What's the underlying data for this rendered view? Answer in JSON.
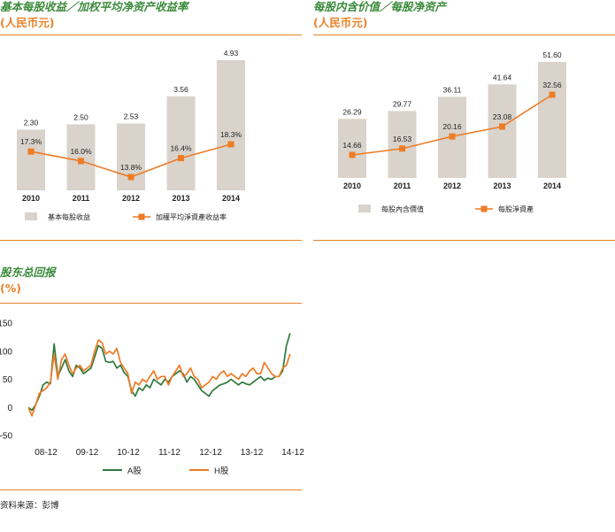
{
  "panels": {
    "p1": {
      "title": "基本每股收益／加权平均净资产收益率",
      "unit": "(人民币元)"
    },
    "p2": {
      "title": "每股内含价值／每股净资产",
      "unit": "(人民币元)"
    },
    "p3": {
      "title": "股东总回报",
      "unit": "(%)"
    }
  },
  "source": "资料来源：彭博",
  "colors": {
    "bar": "#d9d3cb",
    "accent": "#ee7b25",
    "green": "#3a8a3a",
    "a_share": "#2e7a3a",
    "h_share": "#ee7b25",
    "rule": "#e8822a",
    "axis": "#555555"
  },
  "chart_data": [
    {
      "type": "bar",
      "categories": [
        "2010",
        "2011",
        "2012",
        "2013",
        "2014"
      ],
      "series": [
        {
          "name": "基本每股收益",
          "kind": "bar",
          "values": [
            2.3,
            2.5,
            2.53,
            3.56,
            4.93
          ],
          "labels": [
            "2.30",
            "2.50",
            "2.53",
            "3.56",
            "4.93"
          ]
        },
        {
          "name": "加權平均淨資產收益率",
          "kind": "line",
          "values": [
            17.3,
            16.0,
            13.8,
            16.4,
            18.3
          ],
          "labels": [
            "17.3%",
            "16.0%",
            "13.8%",
            "16.4%",
            "18.3%"
          ]
        }
      ],
      "legend": [
        "基本每股收益",
        "加權平均淨資產收益率"
      ]
    },
    {
      "type": "bar",
      "categories": [
        "2010",
        "2011",
        "2012",
        "2013",
        "2014"
      ],
      "series": [
        {
          "name": "每股內含價值",
          "kind": "bar",
          "values": [
            26.29,
            29.77,
            36.11,
            41.64,
            51.6
          ],
          "labels": [
            "26.29",
            "29.77",
            "36.11",
            "41.64",
            "51.60"
          ]
        },
        {
          "name": "每股淨資產",
          "kind": "line",
          "values": [
            14.66,
            16.53,
            20.16,
            23.08,
            32.56
          ],
          "labels": [
            "14.66",
            "16.53",
            "20.16",
            "23.08",
            "32.56"
          ]
        }
      ],
      "legend": [
        "每股內含價值",
        "每股淨資產"
      ]
    },
    {
      "type": "line",
      "x_ticks": [
        "08-12",
        "09-12",
        "10-12",
        "11-12",
        "12-12",
        "13-12",
        "14-12"
      ],
      "y_ticks": [
        "150",
        "100",
        "50",
        "0",
        "-50"
      ],
      "ylim": [
        -50,
        150
      ],
      "xlim": [
        0,
        72
      ],
      "series": [
        {
          "name": "A股",
          "x": [
            0,
            1,
            2,
            3,
            4,
            5,
            6,
            7,
            8,
            9,
            10,
            11,
            12,
            13,
            14,
            15,
            16,
            17,
            18,
            19,
            20,
            21,
            22,
            23,
            24,
            25,
            26,
            27,
            28,
            29,
            30,
            31,
            32,
            33,
            34,
            35,
            36,
            37,
            38,
            39,
            40,
            41,
            42,
            43,
            44,
            45,
            46,
            47,
            48,
            49,
            50,
            51,
            52,
            53,
            54,
            55,
            56,
            57,
            58,
            59,
            60,
            61,
            62,
            63,
            64,
            65,
            66,
            67,
            68,
            69,
            70,
            71
          ],
          "values": [
            0,
            -5,
            5,
            20,
            40,
            45,
            42,
            113,
            55,
            70,
            85,
            65,
            55,
            75,
            70,
            60,
            65,
            70,
            90,
            110,
            105,
            82,
            80,
            82,
            70,
            75,
            62,
            55,
            30,
            20,
            35,
            30,
            40,
            35,
            50,
            45,
            40,
            50,
            45,
            55,
            60,
            65,
            60,
            45,
            55,
            50,
            40,
            30,
            25,
            20,
            30,
            35,
            40,
            42,
            45,
            50,
            45,
            40,
            45,
            42,
            40,
            45,
            50,
            55,
            48,
            52,
            50,
            55,
            55,
            65,
            110,
            132
          ]
        },
        {
          "name": "H股",
          "x": [
            0,
            1,
            2,
            3,
            4,
            5,
            6,
            7,
            8,
            9,
            10,
            11,
            12,
            13,
            14,
            15,
            16,
            17,
            18,
            19,
            20,
            21,
            22,
            23,
            24,
            25,
            26,
            27,
            28,
            29,
            30,
            31,
            32,
            33,
            34,
            35,
            36,
            37,
            38,
            39,
            40,
            41,
            42,
            43,
            44,
            45,
            46,
            47,
            48,
            49,
            50,
            51,
            52,
            53,
            54,
            55,
            56,
            57,
            58,
            59,
            60,
            61,
            62,
            63,
            64,
            65,
            66,
            67,
            68,
            69,
            70,
            71
          ],
          "values": [
            0,
            -15,
            5,
            25,
            30,
            35,
            45,
            95,
            50,
            85,
            95,
            75,
            60,
            70,
            75,
            65,
            70,
            75,
            100,
            120,
            115,
            95,
            100,
            95,
            105,
            80,
            70,
            60,
            25,
            45,
            40,
            50,
            45,
            55,
            65,
            50,
            55,
            55,
            40,
            55,
            65,
            75,
            55,
            60,
            70,
            55,
            50,
            35,
            40,
            45,
            55,
            50,
            60,
            65,
            55,
            60,
            55,
            50,
            60,
            55,
            65,
            70,
            60,
            60,
            80,
            70,
            60,
            55,
            55,
            70,
            75,
            95
          ]
        }
      ]
    }
  ]
}
